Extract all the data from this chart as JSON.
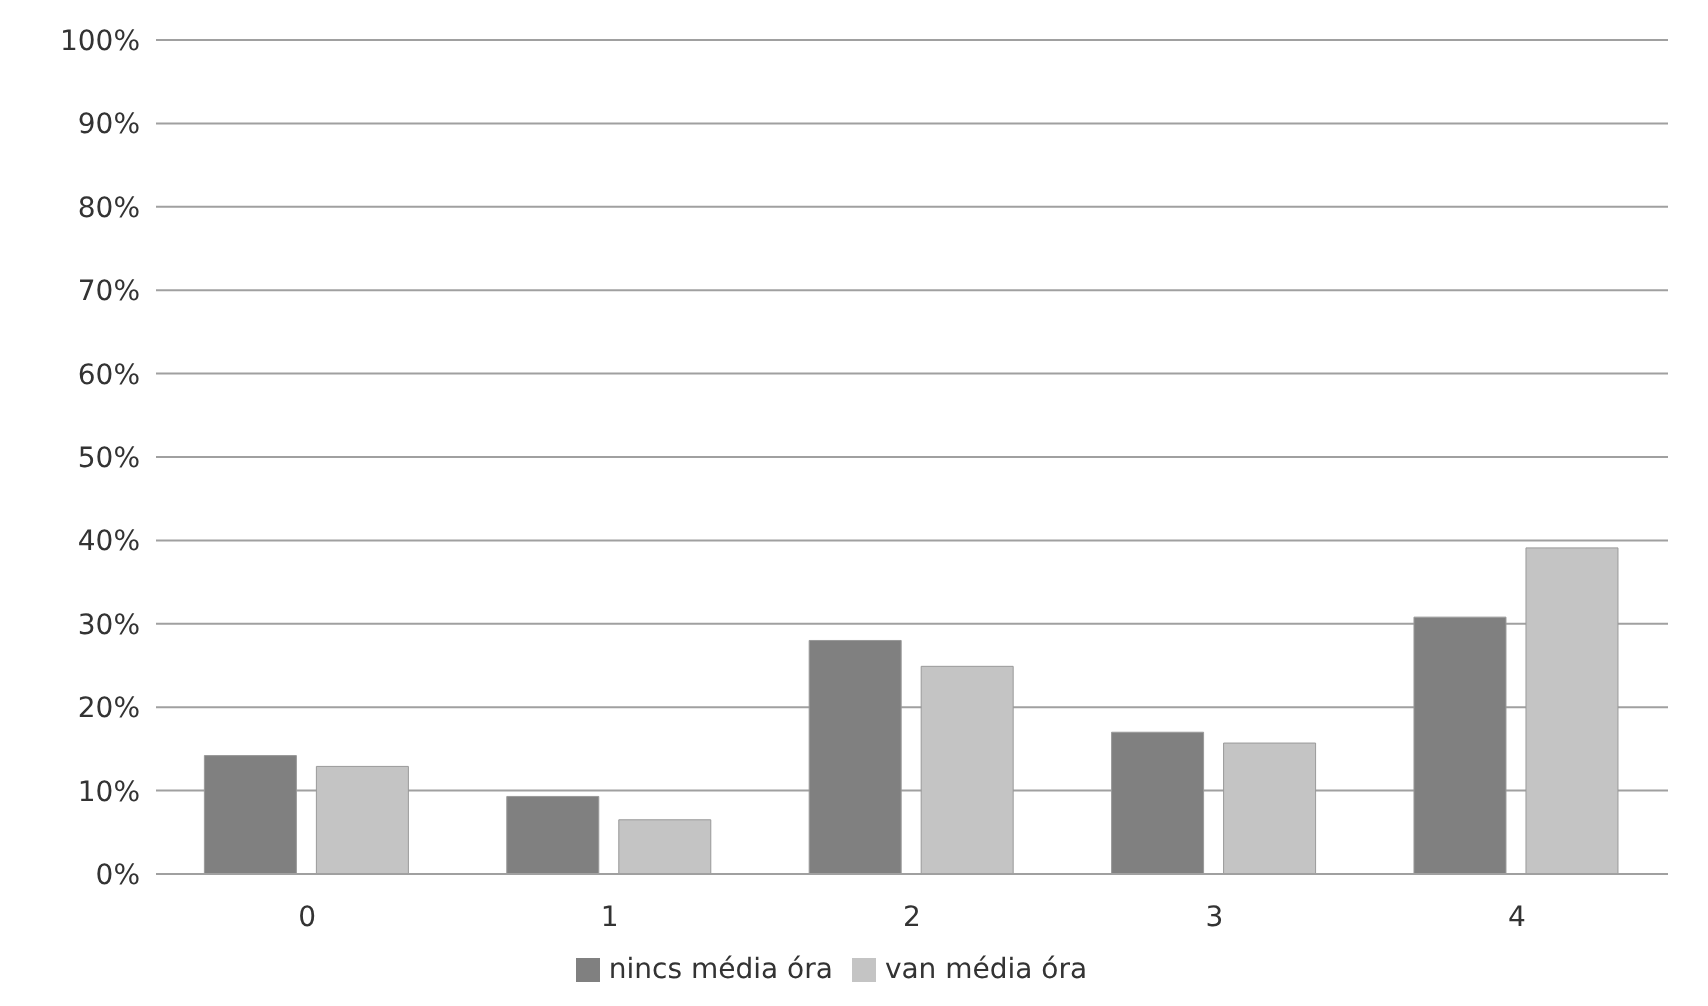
{
  "chart_data": {
    "type": "bar",
    "categories": [
      "0",
      "1",
      "2",
      "3",
      "4"
    ],
    "series": [
      {
        "name": "nincs média óra",
        "color": "#808080",
        "values": [
          14.2,
          9.3,
          28.0,
          17.0,
          30.8
        ]
      },
      {
        "name": "van média óra",
        "color": "#c4c4c4",
        "values": [
          12.9,
          6.5,
          24.9,
          15.7,
          39.1
        ]
      }
    ],
    "ylim": [
      0,
      100
    ],
    "yticks": [
      {
        "value": 0,
        "label": "0%"
      },
      {
        "value": 10,
        "label": "10%"
      },
      {
        "value": 20,
        "label": "20%"
      },
      {
        "value": 30,
        "label": "30%"
      },
      {
        "value": 40,
        "label": "40%"
      },
      {
        "value": 50,
        "label": "50%"
      },
      {
        "value": 60,
        "label": "60%"
      },
      {
        "value": 70,
        "label": "70%"
      },
      {
        "value": 80,
        "label": "80%"
      },
      {
        "value": 90,
        "label": "90%"
      },
      {
        "value": 100,
        "label": "100%"
      }
    ],
    "grid": "y",
    "legend": "bottom"
  }
}
